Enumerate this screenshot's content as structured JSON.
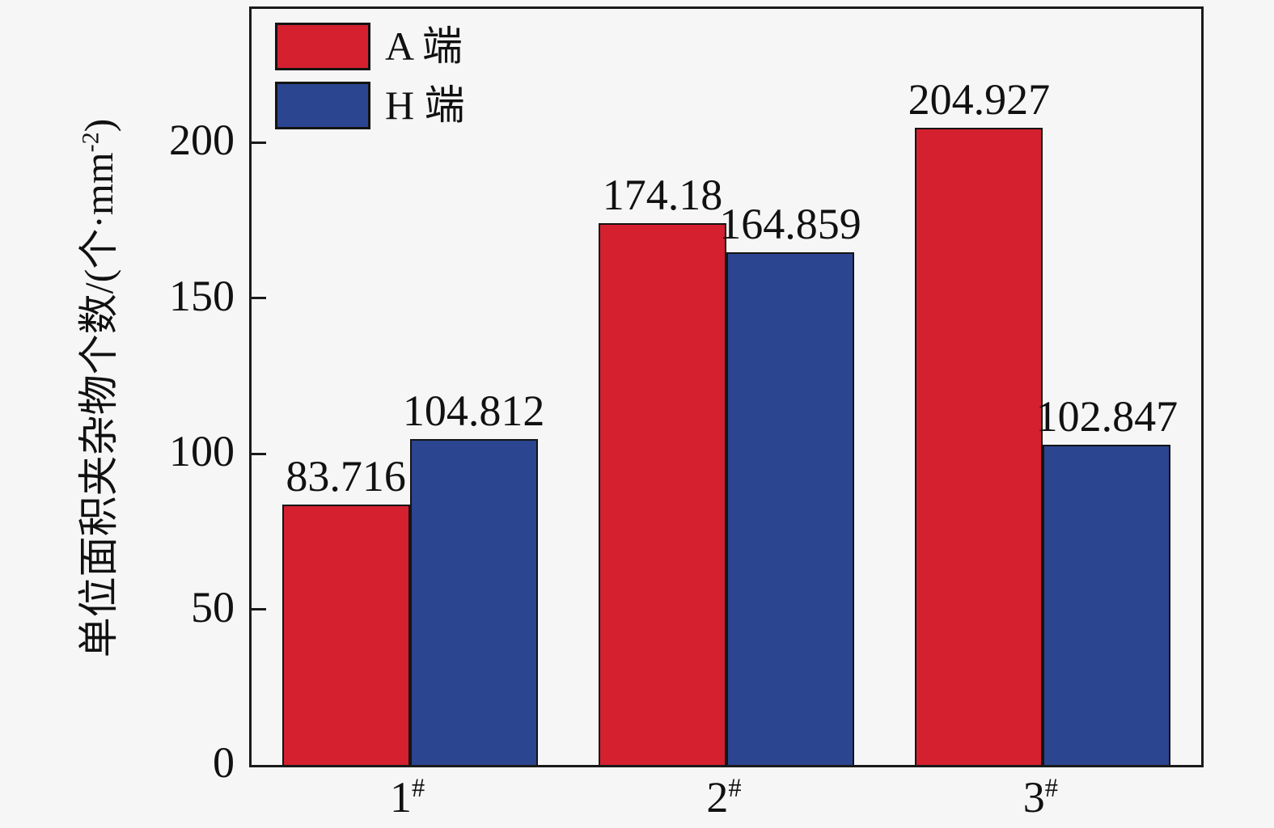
{
  "figure": {
    "background": "#f6f6f6",
    "frame_color": "#1a1a1a"
  },
  "chart_data": {
    "type": "bar",
    "title": "",
    "xlabel": "",
    "ylabel": "单位面积夹杂物个数/(个·mm⁻²)",
    "ylabel_parts": {
      "main": "单位面积夹杂物个数/(个·mm",
      "superscript": "-2",
      "close": ")"
    },
    "categories": [
      "1#",
      "2#",
      "3#"
    ],
    "category_parts": [
      {
        "base": "1",
        "sup": "#"
      },
      {
        "base": "2",
        "sup": "#"
      },
      {
        "base": "3",
        "sup": "#"
      }
    ],
    "series": [
      {
        "name": "A 端",
        "color": "#d4202f",
        "values": [
          83.716,
          174.18,
          204.927
        ],
        "labels": [
          "83.716",
          "174.18",
          "204.927"
        ]
      },
      {
        "name": "H 端",
        "color": "#2b4590",
        "values": [
          104.812,
          164.859,
          102.847
        ],
        "labels": [
          "104.812",
          "164.859",
          "102.847"
        ]
      }
    ],
    "yticks": [
      0,
      50,
      100,
      150,
      200
    ],
    "ylim": [
      0,
      243
    ],
    "grid": false,
    "legend_position": "top-left",
    "bar_edge_color": "#141414",
    "value_label_color": "#111111"
  }
}
